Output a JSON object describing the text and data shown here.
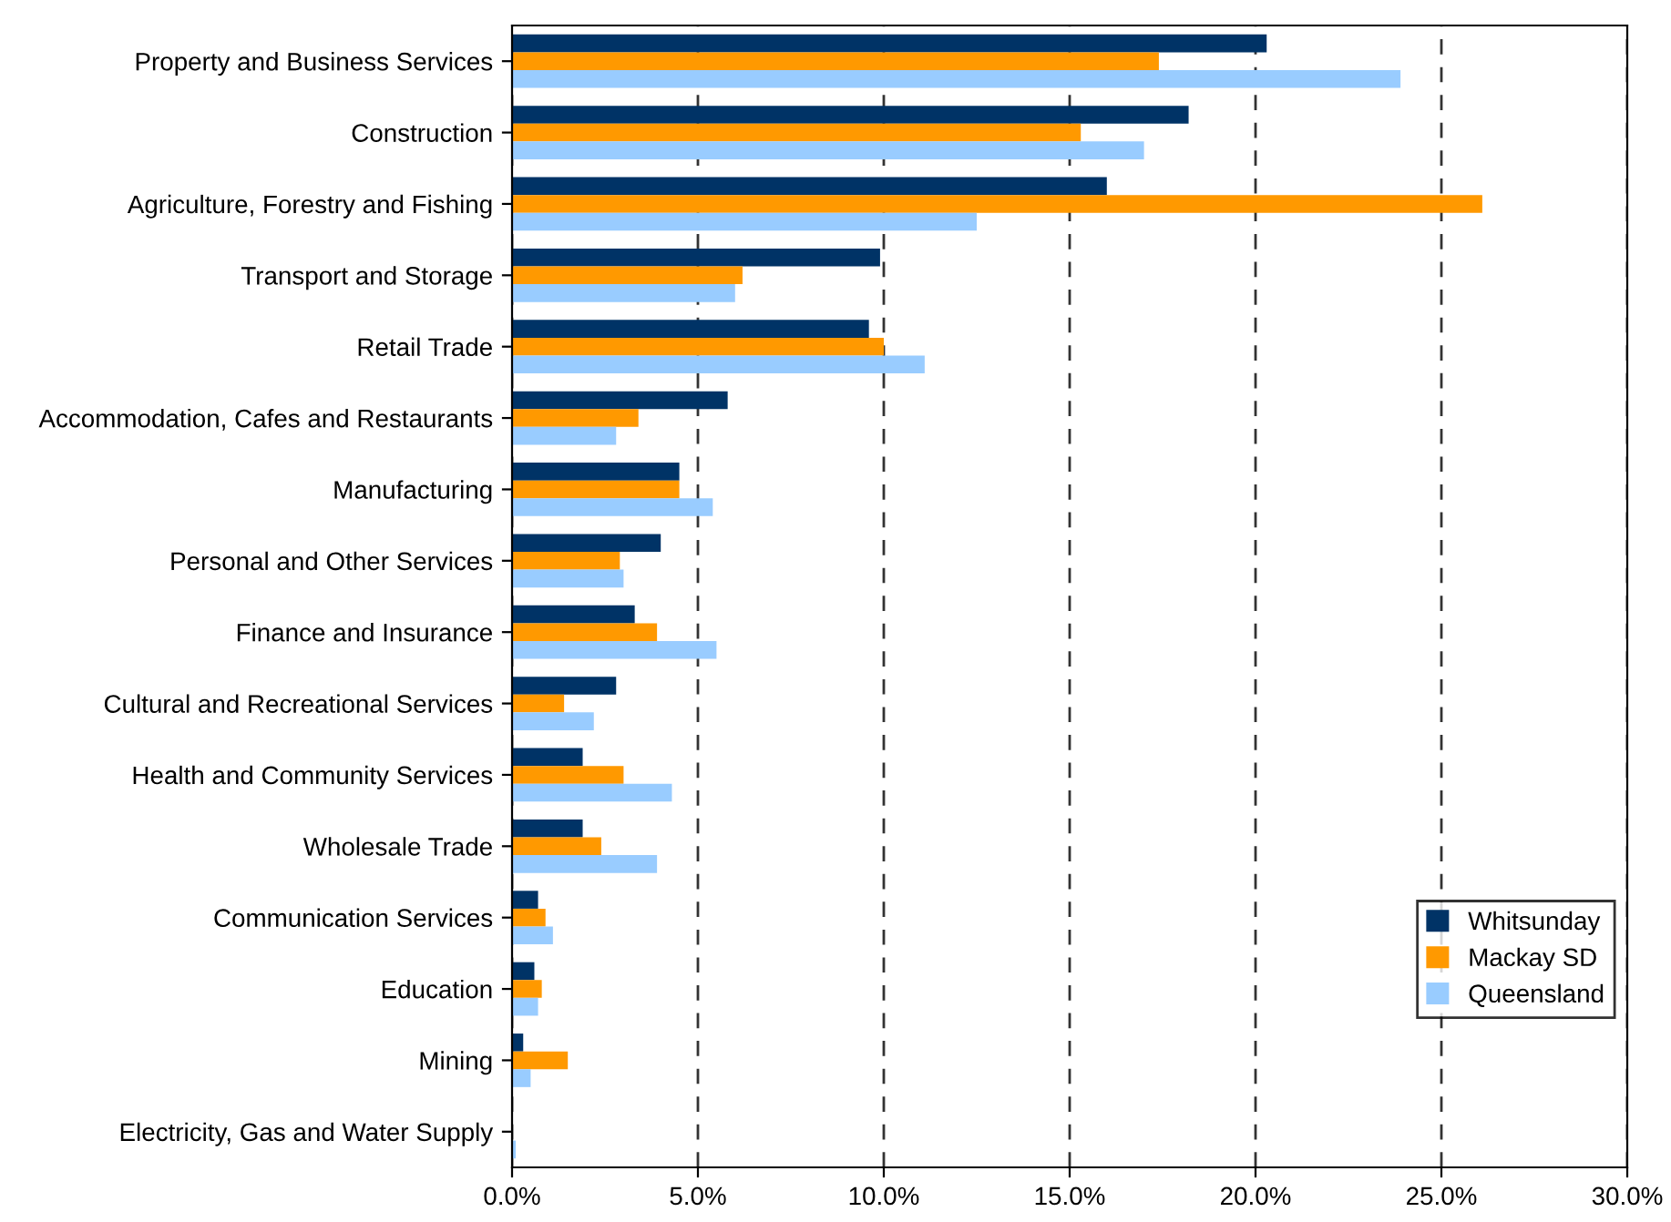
{
  "chart_data": {
    "type": "bar",
    "orientation": "horizontal",
    "categories": [
      "Property and Business Services",
      "Construction",
      "Agriculture, Forestry and Fishing",
      "Transport and Storage",
      "Retail Trade",
      "Accommodation, Cafes and Restaurants",
      "Manufacturing",
      "Personal and Other Services",
      "Finance and Insurance",
      "Cultural and Recreational Services",
      "Health and Community Services",
      "Wholesale Trade",
      "Communication Services",
      "Education",
      "Mining",
      "Electricity, Gas and Water Supply"
    ],
    "series": [
      {
        "name": "Whitsunday",
        "color": "#003366",
        "values": [
          20.3,
          18.2,
          16.0,
          9.9,
          9.6,
          5.8,
          4.5,
          4.0,
          3.3,
          2.8,
          1.9,
          1.9,
          0.7,
          0.6,
          0.3,
          0.0
        ]
      },
      {
        "name": "Mackay SD",
        "color": "#ff9900",
        "values": [
          17.4,
          15.3,
          26.1,
          6.2,
          10.0,
          3.4,
          4.5,
          2.9,
          3.9,
          1.4,
          3.0,
          2.4,
          0.9,
          0.8,
          1.5,
          0.0
        ]
      },
      {
        "name": "Queensland",
        "color": "#99ccff",
        "values": [
          23.9,
          17.0,
          12.5,
          6.0,
          11.1,
          2.8,
          5.4,
          3.0,
          5.5,
          2.2,
          4.3,
          3.9,
          1.1,
          0.7,
          0.5,
          0.1
        ]
      }
    ],
    "xlim": [
      0,
      30
    ],
    "xticks": [
      {
        "value": 0,
        "label": "0.0%"
      },
      {
        "value": 5,
        "label": "5.0%"
      },
      {
        "value": 10,
        "label": "10.0%"
      },
      {
        "value": 15,
        "label": "15.0%"
      },
      {
        "value": 20,
        "label": "20.0%"
      },
      {
        "value": 25,
        "label": "25.0%"
      },
      {
        "value": 30,
        "label": "30.0%"
      }
    ],
    "grid": "x",
    "legend": "bottom right"
  }
}
